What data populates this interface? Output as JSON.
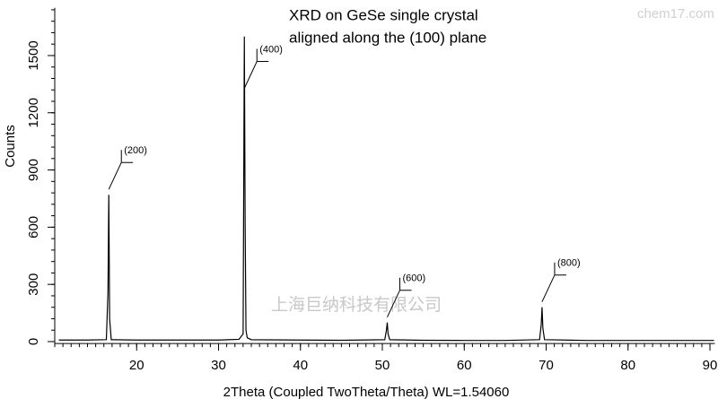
{
  "chart_data": {
    "type": "line",
    "title": [
      "XRD on GeSe single crystal",
      "aligned along the (100) plane"
    ],
    "x_label": "2Theta (Coupled TwoTheta/Theta) WL=1.54060",
    "y_label": "Counts",
    "watermarks": [
      "chem17.com",
      "上海巨纳科技有限公司"
    ],
    "xlim": [
      10,
      90.6
    ],
    "ylim": [
      -10,
      1750
    ],
    "xticks": [
      20,
      30,
      40,
      50,
      60,
      70,
      80,
      90
    ],
    "yticks": [
      0,
      300,
      600,
      900,
      1200,
      1500
    ],
    "xminor_step": 1,
    "yminor_step": 60,
    "series": [
      {
        "name": "GeSe",
        "color": "#000000",
        "x": [
          10.5,
          14,
          16.3,
          16.5,
          16.6,
          16.7,
          16.9,
          20,
          25,
          30,
          32.5,
          33.0,
          33.15,
          33.25,
          33.35,
          33.5,
          34,
          40,
          45,
          50.3,
          50.5,
          50.6,
          50.7,
          50.9,
          55,
          60,
          65,
          69.2,
          69.4,
          69.5,
          69.6,
          69.8,
          75,
          80,
          85,
          90.5
        ],
        "values": [
          8,
          8,
          10,
          260,
          770,
          120,
          10,
          8,
          8,
          8,
          12,
          40,
          1600,
          600,
          60,
          20,
          10,
          8,
          7,
          10,
          60,
          100,
          40,
          10,
          7,
          6,
          6,
          10,
          90,
          180,
          70,
          10,
          6,
          6,
          6,
          6
        ]
      }
    ],
    "annotations": [
      {
        "label": "(200)",
        "x": 16.6,
        "y": 770
      },
      {
        "label": "(400)",
        "x": 33.15,
        "y": 1300
      },
      {
        "label": "(600)",
        "x": 50.6,
        "y": 100
      },
      {
        "label": "(800)",
        "x": 69.5,
        "y": 180
      }
    ]
  }
}
